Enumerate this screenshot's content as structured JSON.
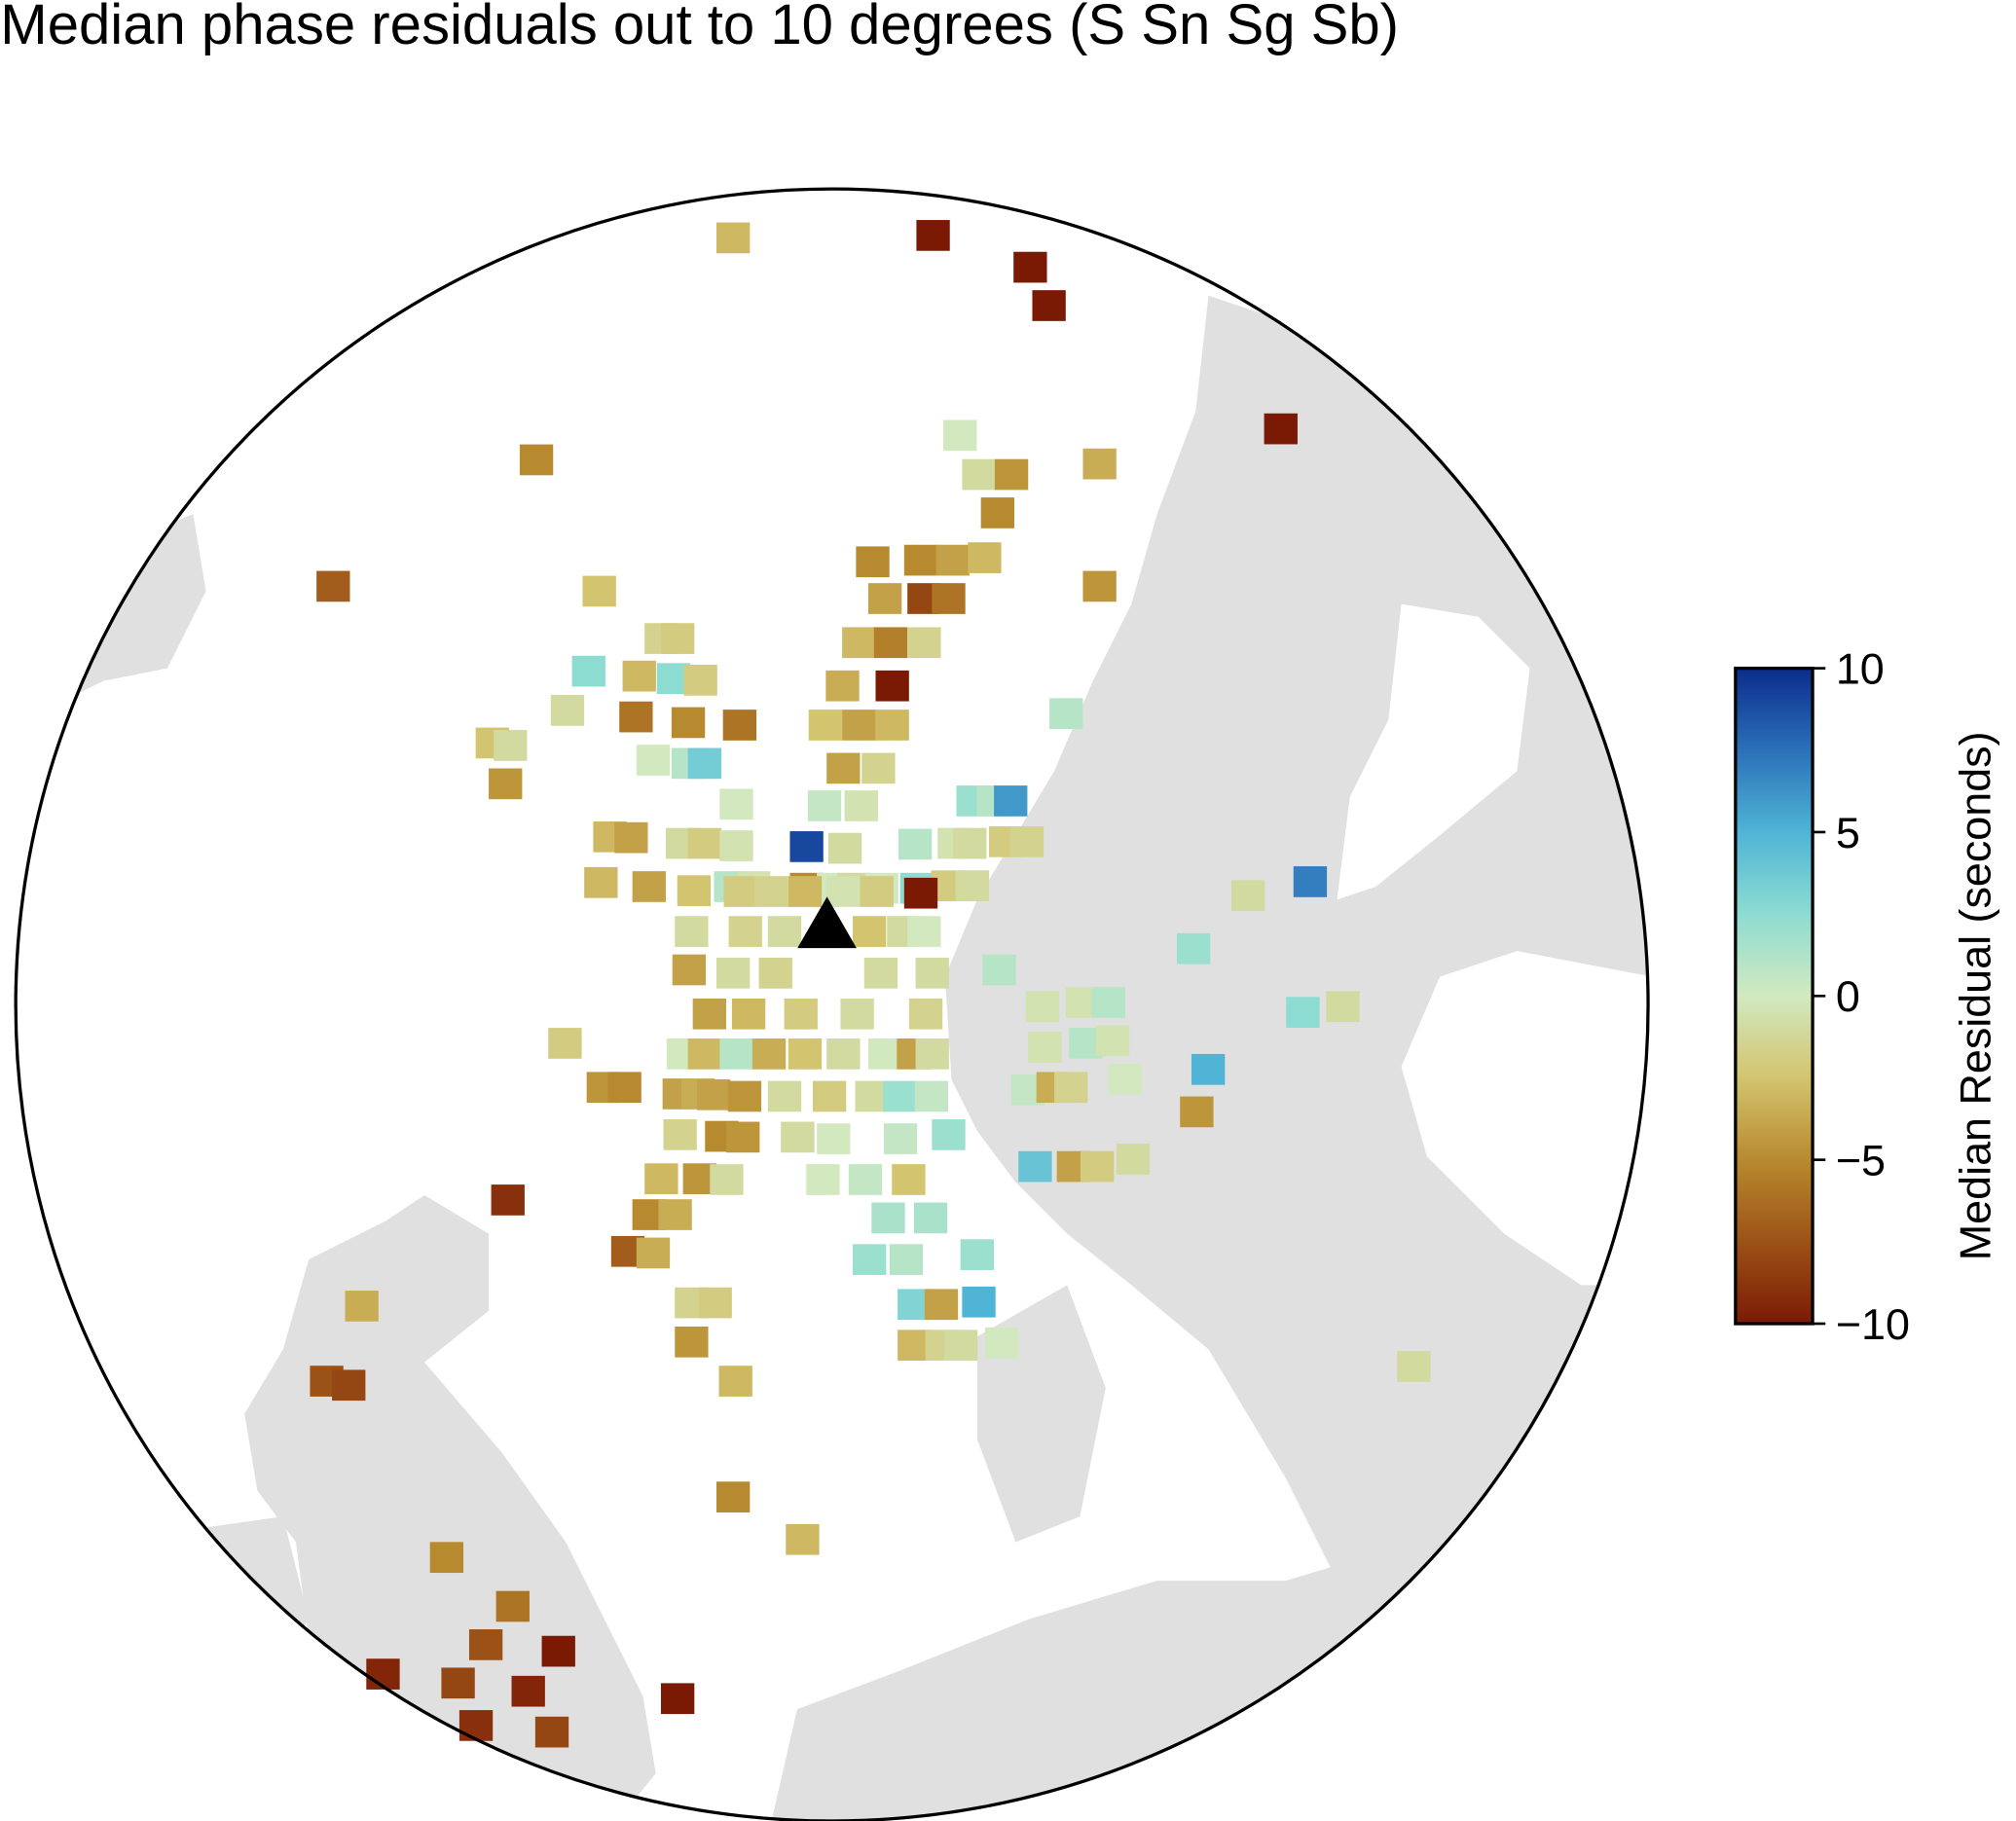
{
  "chart_data": {
    "type": "scatter",
    "title": "Median phase residuals out to 10 degrees (S Sn Sg Sb)",
    "xlim": [
      -10,
      10
    ],
    "ylim": [
      -10,
      10
    ],
    "station": {
      "x": -0.06,
      "y": 0.98
    },
    "x": [
      -1.21,
      1.24,
      2.43,
      2.66,
      5.5,
      -3.62,
      1.57,
      1.8,
      2.2,
      3.28,
      2.03,
      -6.11,
      -2.85,
      0.5,
      1.09,
      1.48,
      1.87,
      3.28,
      0.65,
      1.13,
      1.43,
      0.33,
      0.72,
      1.13,
      -2.09,
      -1.89,
      -2.98,
      -2.36,
      -1.94,
      -1.61,
      0.13,
      0.74,
      -3.24,
      -2.4,
      -1.76,
      -1.13,
      -0.08,
      0.33,
      0.74,
      2.87,
      -4.16,
      -3.94,
      -2.19,
      -1.76,
      -1.56,
      0.14,
      0.57,
      -4.0,
      -1.17,
      -0.09,
      0.36,
      1.73,
      1.98,
      2.19,
      -2.72,
      -2.46,
      -1.83,
      -1.56,
      -1.17,
      -0.31,
      0.16,
      1.02,
      1.5,
      1.69,
      2.13,
      2.39,
      -1.24,
      -0.96,
      -0.31,
      0.02,
      0.27,
      0.61,
      1.04,
      1.42,
      1.72,
      5.86,
      -2.83,
      -2.24,
      -1.69,
      -1.12,
      -0.74,
      -0.33,
      0.14,
      0.55,
      1.09,
      5.1,
      -1.72,
      -1.06,
      -0.58,
      0.46,
      0.88,
      1.13,
      4.43,
      -1.75,
      -1.21,
      -0.69,
      0.6,
      1.23,
      2.05,
      2.58,
      3.07,
      3.39,
      5.77,
      6.26,
      -1.5,
      -1.02,
      -0.38,
      0.31,
      1.15,
      -3.27,
      -1.82,
      -1.56,
      -1.17,
      -0.77,
      -0.33,
      0.14,
      0.65,
      1.0,
      1.23,
      2.61,
      3.11,
      3.44,
      -2.8,
      -2.54,
      3.59,
      4.61,
      -1.87,
      -1.64,
      -1.45,
      -1.07,
      -0.58,
      -0.03,
      0.49,
      0.83,
      1.22,
      2.4,
      2.71,
      2.93,
      4.47,
      -1.86,
      -1.35,
      -1.09,
      -0.42,
      0.02,
      0.84,
      1.43,
      -2.09,
      -1.62,
      -1.29,
      -0.11,
      0.41,
      0.94,
      2.49,
      2.96,
      3.25,
      3.69,
      -3.97,
      -2.24,
      -1.92,
      0.69,
      1.21,
      -2.5,
      -2.19,
      0.46,
      0.91,
      1.78,
      -5.76,
      -1.72,
      -1.43,
      1.01,
      1.34,
      1.8,
      -1.72,
      1.01,
      1.35,
      1.58,
      2.08,
      7.13,
      -6.19,
      -5.92,
      -1.18,
      -1.21,
      -4.72,
      -0.36,
      -3.91,
      -4.24,
      -3.35,
      -5.5,
      -4.58,
      -3.72,
      -1.89,
      -4.36,
      -3.43
    ],
    "y": [
      9.4,
      9.43,
      9.04,
      8.57,
      7.06,
      6.68,
      6.98,
      6.5,
      6.5,
      6.63,
      6.03,
      5.13,
      5.07,
      5.43,
      5.45,
      5.45,
      5.48,
      5.13,
      4.98,
      4.98,
      4.98,
      4.44,
      4.44,
      4.44,
      4.49,
      4.49,
      4.09,
      4.03,
      4.0,
      3.98,
      3.91,
      3.91,
      3.61,
      3.53,
      3.46,
      3.43,
      3.43,
      3.43,
      3.43,
      3.57,
      3.21,
      3.18,
      3.0,
      2.96,
      2.96,
      2.9,
      2.9,
      2.71,
      2.46,
      2.44,
      2.44,
      2.5,
      2.5,
      2.5,
      2.06,
      2.05,
      1.98,
      1.98,
      1.95,
      1.94,
      1.92,
      1.97,
      1.98,
      1.98,
      2.0,
      2.0,
      1.45,
      1.45,
      1.43,
      1.43,
      1.43,
      1.43,
      1.43,
      1.46,
      1.46,
      1.51,
      1.5,
      1.45,
      1.4,
      1.39,
      1.39,
      1.39,
      1.39,
      1.39,
      1.37,
      1.34,
      0.9,
      0.9,
      0.9,
      0.9,
      0.9,
      0.9,
      0.69,
      0.43,
      0.39,
      0.39,
      0.39,
      0.39,
      0.43,
      -0.02,
      0.03,
      0.03,
      -0.09,
      -0.02,
      -0.11,
      -0.11,
      -0.11,
      -0.11,
      -0.11,
      -0.47,
      -0.6,
      -0.6,
      -0.6,
      -0.6,
      -0.6,
      -0.6,
      -0.6,
      -0.6,
      -0.6,
      -0.52,
      -0.47,
      -0.44,
      -1.01,
      -1.01,
      -0.91,
      -0.79,
      -1.09,
      -1.09,
      -1.1,
      -1.12,
      -1.12,
      -1.12,
      -1.12,
      -1.12,
      -1.12,
      -1.04,
      -1.01,
      -1.01,
      -1.31,
      -1.59,
      -1.61,
      -1.62,
      -1.62,
      -1.64,
      -1.64,
      -1.59,
      -2.13,
      -2.13,
      -2.14,
      -2.14,
      -2.14,
      -2.14,
      -1.98,
      -1.98,
      -1.98,
      -1.89,
      -2.39,
      -2.57,
      -2.57,
      -2.61,
      -2.61,
      -3.02,
      -3.04,
      -3.12,
      -3.12,
      -3.06,
      -3.69,
      -3.65,
      -3.65,
      -3.67,
      -3.67,
      -3.64,
      -4.13,
      -4.17,
      -4.17,
      -4.17,
      -4.14,
      -4.43,
      -4.61,
      -4.66,
      -4.61,
      -6.03,
      -6.77,
      -6.55,
      -7.37,
      -7.84,
      -7.92,
      -8.2,
      -8.31,
      -8.41,
      -8.5,
      -8.83,
      -8.91
    ],
    "values": [
      -3,
      -10,
      -10,
      -10,
      -10,
      -5,
      0,
      -1,
      -4.5,
      -3.5,
      -5,
      -7,
      -2.5,
      -5,
      -5,
      -4,
      -3,
      -4.5,
      -4,
      -8,
      -6,
      -3,
      -5.5,
      -1.5,
      -1.5,
      -2,
      2.5,
      -3,
      2.5,
      -2,
      -3.5,
      -10,
      -1,
      -6,
      -5,
      -6,
      -2.5,
      -4,
      -3,
      1,
      -2.5,
      -1,
      0,
      1,
      3.5,
      -4,
      -1.5,
      -4.5,
      0,
      0.5,
      -0.5,
      2,
      1,
      6,
      -3,
      -4,
      -1,
      -2,
      -0.5,
      9,
      -1,
      1,
      -0.5,
      -1,
      -2,
      -1.5,
      1,
      -0.5,
      -5,
      0,
      -1,
      0,
      2.5,
      -2,
      -1,
      7,
      -3,
      -4,
      -2.5,
      -2,
      -1.5,
      -3,
      -0.5,
      -2,
      -10,
      -1,
      -1,
      -1.5,
      -1,
      -2.5,
      -1,
      0,
      2,
      -4,
      -1,
      -1.5,
      -1,
      -1,
      1,
      -0.5,
      -0.5,
      1,
      2.5,
      -1,
      -4,
      -3,
      -2,
      -1,
      -1.5,
      -2,
      0,
      -3,
      1,
      -3.5,
      -2.5,
      -1,
      0,
      -4,
      -1,
      -0.5,
      1,
      -0.5,
      -4.5,
      -5,
      0,
      5,
      -4,
      -3.5,
      -4,
      -4.5,
      -1,
      -2,
      -1,
      2,
      0.5,
      0.5,
      -3.5,
      -1.5,
      -4.5,
      -1.5,
      -5,
      -4.5,
      -1,
      0,
      0.5,
      2,
      -3,
      -4.5,
      -1,
      0,
      0.5,
      -2.5,
      4,
      -4,
      -2,
      -1,
      -9,
      -5,
      -3.5,
      1.5,
      1.5,
      -7,
      -3.5,
      2,
      1,
      2,
      -3.5,
      -1.5,
      -2,
      3,
      -4,
      5,
      -4.5,
      -3,
      -1.5,
      -1,
      0,
      -1,
      -7.5,
      -8,
      -3,
      -5,
      -5,
      -3,
      -6,
      -7.5,
      -10,
      -9.5,
      -8,
      -9.5,
      -10,
      -9,
      -8
    ],
    "colorbar": {
      "label": "Median Residual (seconds)",
      "clim": [
        -10,
        10
      ],
      "ticks": [
        10,
        5,
        0,
        {
          "value": -5,
          "label": "−5"
        },
        {
          "value": -10,
          "label": "−10"
        }
      ],
      "colors": [
        "#7b1a04",
        "#9c5217",
        "#b88a2f",
        "#d3c46f",
        "#d2e9c0",
        "#8ddcd2",
        "#4fb4d6",
        "#2b70b8",
        "#0b2c8c"
      ]
    }
  }
}
